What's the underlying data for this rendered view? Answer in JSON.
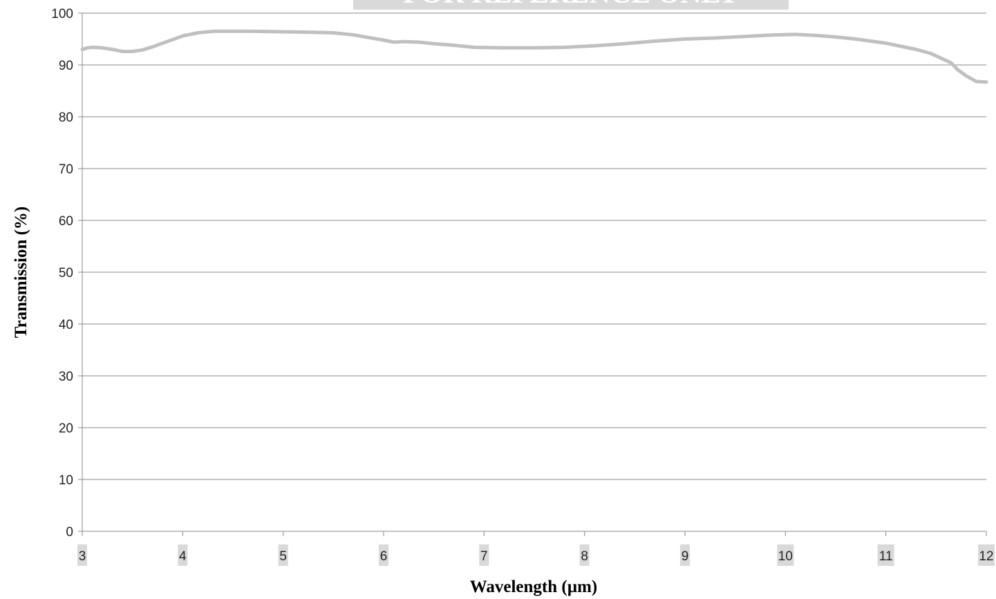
{
  "chart_data": {
    "type": "line",
    "title": "",
    "banner": "FOR REFERENCE ONLY",
    "xlabel": "Wavelength (µm)",
    "ylabel": "Transmission (%)",
    "xlim": [
      3,
      12
    ],
    "ylim": [
      0,
      100
    ],
    "xticks": [
      "3",
      "4",
      "5",
      "6",
      "7",
      "8",
      "9",
      "10",
      "11",
      "12"
    ],
    "yticks": [
      "0",
      "10",
      "20",
      "30",
      "40",
      "50",
      "60",
      "70",
      "80",
      "90",
      "100"
    ],
    "grid": "horizontal",
    "colors": {
      "line": "#c0c0c0",
      "grid": "#888888",
      "axis": "#888888",
      "tick_label_bg": "#d9d9d9",
      "banner_bg": "#d9d9d9"
    },
    "series": [
      {
        "x": [
          3.0,
          3.05,
          3.1,
          3.2,
          3.3,
          3.4,
          3.5,
          3.6,
          3.7,
          3.8,
          3.9,
          4.0,
          4.15,
          4.3,
          4.5,
          4.7,
          5.0,
          5.3,
          5.5,
          5.7,
          5.85,
          6.0,
          6.1,
          6.2,
          6.35,
          6.5,
          6.7,
          6.9,
          7.2,
          7.5,
          7.8,
          8.1,
          8.4,
          8.7,
          9.0,
          9.3,
          9.6,
          9.9,
          10.1,
          10.3,
          10.5,
          10.7,
          10.85,
          11.0,
          11.15,
          11.3,
          11.45,
          11.55,
          11.65,
          11.72,
          11.8,
          11.9,
          12.0
        ],
        "y": [
          93.0,
          93.3,
          93.4,
          93.3,
          93.0,
          92.6,
          92.6,
          92.9,
          93.5,
          94.2,
          94.9,
          95.6,
          96.2,
          96.5,
          96.5,
          96.5,
          96.4,
          96.3,
          96.2,
          95.8,
          95.3,
          94.8,
          94.4,
          94.5,
          94.4,
          94.1,
          93.8,
          93.4,
          93.3,
          93.3,
          93.4,
          93.7,
          94.1,
          94.6,
          95.0,
          95.2,
          95.5,
          95.8,
          95.9,
          95.7,
          95.4,
          95.0,
          94.6,
          94.2,
          93.6,
          93.0,
          92.2,
          91.3,
          90.4,
          89.0,
          87.9,
          86.8,
          86.7
        ]
      }
    ]
  }
}
